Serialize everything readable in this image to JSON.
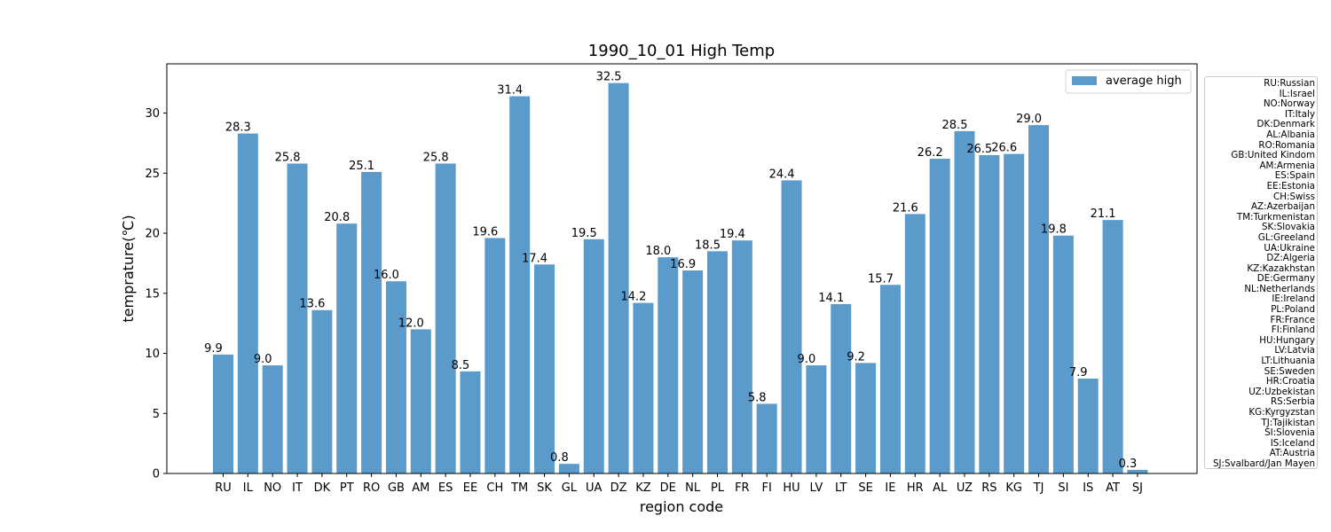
{
  "chart_data": {
    "type": "bar",
    "title": "1990_10_01 High Temp",
    "xlabel": "region code",
    "ylabel": "temprature(℃)",
    "ylim": [
      0,
      34.1
    ],
    "yticks": [
      "0",
      "5",
      "10",
      "15",
      "20",
      "25",
      "30"
    ],
    "grid": false,
    "legend_position": "top-right",
    "series": [
      {
        "name": "average high",
        "color": "#5b9bcc",
        "values": [
          9.9,
          28.3,
          9.0,
          25.8,
          13.6,
          20.8,
          25.1,
          16.0,
          12.0,
          25.8,
          8.5,
          19.6,
          31.4,
          17.4,
          0.8,
          19.5,
          32.5,
          14.2,
          18.0,
          16.9,
          18.5,
          19.4,
          5.8,
          24.4,
          9.0,
          14.1,
          9.2,
          15.7,
          21.6,
          26.2,
          28.5,
          26.5,
          26.6,
          29.0,
          19.8,
          7.9,
          21.1,
          0.3
        ],
        "labels": [
          "9.9",
          "28.3",
          "9.0",
          "25.8",
          "13.6",
          "20.8",
          "25.1",
          "16.0",
          "12.0",
          "25.8",
          "8.5",
          "19.6",
          "31.4",
          "17.4",
          "0.8",
          "19.5",
          "32.5",
          "14.2",
          "18.0",
          "16.9",
          "18.5",
          "19.4",
          "5.8",
          "24.4",
          "9.0",
          "14.1",
          "9.2",
          "15.7",
          "21.6",
          "26.2",
          "28.5",
          "26.5",
          "26.6",
          "29.0",
          "19.8",
          "7.9",
          "21.1",
          "0.3"
        ]
      }
    ],
    "categories": [
      "RU",
      "IL",
      "NO",
      "IT",
      "DK",
      "PT",
      "RO",
      "GB",
      "AM",
      "ES",
      "EE",
      "CH",
      "TM",
      "SK",
      "GL",
      "UA",
      "DZ",
      "KZ",
      "DE",
      "NL",
      "PL",
      "FR",
      "FI",
      "HU",
      "LV",
      "LT",
      "SE",
      "IE",
      "HR",
      "AL",
      "UZ",
      "RS",
      "KG",
      "TJ",
      "SI",
      "IS",
      "AT",
      "SJ"
    ]
  },
  "region_key": [
    "RU:Russian",
    "IL:Israel",
    "NO:Norway",
    "IT:Italy",
    "DK:Denmark",
    "AL:Albania",
    "RO:Romania",
    "GB:United Kindom",
    "AM:Armenia",
    "ES:Spain",
    "EE:Estonia",
    "CH:Swiss",
    "AZ:Azerbaijan",
    "TM:Turkmenistan",
    "SK:Slovakia",
    "GL:Greeland",
    "UA:Ukraine",
    "DZ:Algeria",
    "KZ:Kazakhstan",
    "DE:Germany",
    "NL:Netherlands",
    "IE:Ireland",
    "PL:Poland",
    "FR:France",
    "FI:Finland",
    "HU:Hungary",
    "LV:Latvia",
    "LT:Lithuania",
    "SE:Sweden",
    "HR:Croatia",
    "UZ:Uzbekistan",
    "RS:Serbia",
    "KG:Kyrgyzstan",
    "TJ:Tajikistan",
    "SI:Slovenia",
    "IS:Iceland",
    "AT:Austria",
    "SJ:Svalbard/Jan Mayen"
  ]
}
